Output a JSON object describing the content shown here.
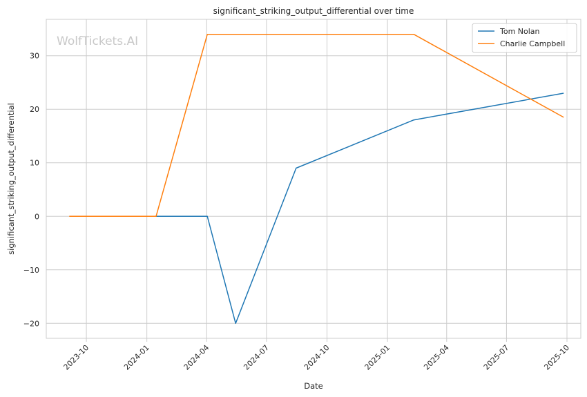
{
  "chart_data": {
    "type": "line",
    "title": "significant_striking_output_differential over time",
    "xlabel": "Date",
    "ylabel": "significant_striking_output_differential",
    "watermark": "WolfTickets.AI",
    "x_tick_labels": [
      "2023-10",
      "2024-01",
      "2024-04",
      "2024-07",
      "2024-10",
      "2025-01",
      "2025-04",
      "2025-07",
      "2025-10"
    ],
    "x_tick_dates": [
      "2023-10-01",
      "2024-01-01",
      "2024-04-01",
      "2024-07-01",
      "2024-10-01",
      "2025-01-01",
      "2025-04-01",
      "2025-07-01",
      "2025-10-01"
    ],
    "xlim": [
      "2023-08-01",
      "2025-10-22"
    ],
    "y_ticks": [
      -20,
      -10,
      0,
      10,
      20,
      30
    ],
    "y_tick_labels": [
      "−20",
      "−10",
      "0",
      "10",
      "20",
      "30"
    ],
    "ylim": [
      -22.8,
      36.8
    ],
    "grid": true,
    "legend_position": "top-right",
    "series": [
      {
        "name": "Tom Nolan",
        "color": "#1f77b4",
        "x": [
          "2024-01-15",
          "2024-04-02",
          "2024-05-15",
          "2024-08-15",
          "2025-02-10",
          "2025-09-26"
        ],
        "y": [
          0,
          0,
          -20,
          9,
          18,
          23
        ]
      },
      {
        "name": "Charlie Campbell",
        "color": "#ff7f0e",
        "x": [
          "2023-09-05",
          "2024-01-15",
          "2024-04-02",
          "2025-02-10",
          "2025-09-26"
        ],
        "y": [
          0,
          0,
          34,
          34,
          18.5
        ]
      }
    ]
  }
}
